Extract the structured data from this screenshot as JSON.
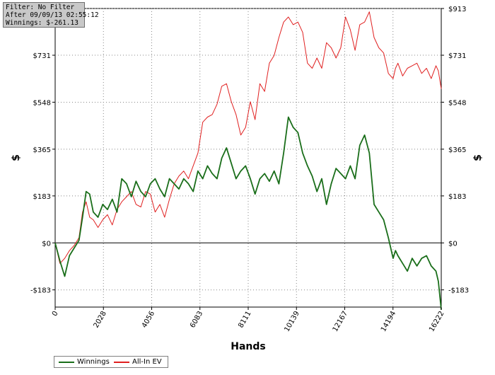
{
  "info": {
    "filter": "Filter: No Filter",
    "after": "After 09/09/13 02:55:12",
    "winnings": "Winnings: $-261.13"
  },
  "colors": {
    "winnings": "#1a6e1a",
    "allin_ev": "#e02020",
    "grid": "#888888"
  },
  "chart_data": {
    "type": "line",
    "xlabel": "Hands",
    "ylabel": "$",
    "ylabel_right": "$",
    "xlim": [
      0,
      16222
    ],
    "ylim": [
      -250,
      913
    ],
    "x_ticks": [
      0,
      2028,
      4056,
      6083,
      8111,
      10139,
      12167,
      14194,
      16222
    ],
    "x_tick_labels": [
      "0",
      "2028",
      "4056",
      "6083",
      "8111",
      "10139",
      "12167",
      "14194",
      "16222"
    ],
    "y_ticks": [
      -183,
      0,
      183,
      365,
      548,
      731,
      913
    ],
    "y_tick_labels": [
      "-$183",
      "$0",
      "$183",
      "$365",
      "$548",
      "$731",
      "$913"
    ],
    "grid": true,
    "legend": "bottom-left",
    "series": [
      {
        "name": "Winnings",
        "color": "#1a6e1a",
        "x": [
          0,
          200,
          400,
          600,
          800,
          1000,
          1150,
          1300,
          1450,
          1600,
          1800,
          2000,
          2200,
          2400,
          2600,
          2800,
          3000,
          3200,
          3400,
          3600,
          3800,
          4000,
          4200,
          4400,
          4600,
          4800,
          5000,
          5200,
          5400,
          5600,
          5800,
          6000,
          6200,
          6400,
          6600,
          6800,
          7000,
          7200,
          7400,
          7600,
          7800,
          8000,
          8200,
          8400,
          8600,
          8800,
          9000,
          9200,
          9400,
          9600,
          9800,
          10000,
          10200,
          10400,
          10600,
          10800,
          11000,
          11200,
          11400,
          11600,
          11800,
          12000,
          12200,
          12400,
          12600,
          12800,
          13000,
          13200,
          13400,
          13600,
          13800,
          14000,
          14200,
          14300,
          14400,
          14600,
          14800,
          15000,
          15200,
          15400,
          15600,
          15800,
          16000,
          16100,
          16222
        ],
        "y": [
          0,
          -70,
          -130,
          -50,
          -20,
          10,
          100,
          200,
          190,
          120,
          100,
          150,
          130,
          170,
          120,
          250,
          230,
          180,
          240,
          200,
          180,
          230,
          250,
          210,
          180,
          250,
          230,
          210,
          250,
          230,
          200,
          280,
          250,
          300,
          270,
          250,
          330,
          370,
          310,
          250,
          280,
          300,
          250,
          190,
          250,
          270,
          240,
          280,
          230,
          350,
          490,
          450,
          430,
          350,
          300,
          260,
          200,
          250,
          150,
          230,
          290,
          270,
          250,
          300,
          250,
          380,
          420,
          350,
          150,
          120,
          90,
          20,
          -60,
          -30,
          -50,
          -80,
          -110,
          -60,
          -90,
          -60,
          -50,
          -90,
          -110,
          -150,
          -260
        ]
      },
      {
        "name": "All-In EV",
        "color": "#e02020",
        "x": [
          0,
          200,
          400,
          600,
          800,
          1000,
          1150,
          1300,
          1450,
          1600,
          1800,
          2000,
          2200,
          2400,
          2600,
          2800,
          3000,
          3200,
          3400,
          3600,
          3800,
          4000,
          4200,
          4400,
          4600,
          4800,
          5000,
          5200,
          5400,
          5600,
          5800,
          6000,
          6200,
          6400,
          6600,
          6800,
          7000,
          7200,
          7400,
          7600,
          7800,
          8000,
          8200,
          8400,
          8600,
          8800,
          9000,
          9200,
          9400,
          9600,
          9800,
          10000,
          10200,
          10400,
          10600,
          10800,
          11000,
          11200,
          11400,
          11600,
          11800,
          12000,
          12200,
          12400,
          12600,
          12800,
          13000,
          13200,
          13400,
          13600,
          13800,
          14000,
          14200,
          14300,
          14400,
          14600,
          14800,
          15000,
          15200,
          15400,
          15600,
          15800,
          16000,
          16100,
          16222
        ],
        "y": [
          0,
          -80,
          -60,
          -30,
          -10,
          20,
          120,
          160,
          100,
          90,
          60,
          90,
          110,
          70,
          130,
          160,
          180,
          200,
          150,
          140,
          200,
          190,
          120,
          150,
          100,
          170,
          230,
          260,
          280,
          250,
          300,
          350,
          470,
          490,
          500,
          540,
          610,
          620,
          550,
          500,
          420,
          450,
          550,
          480,
          620,
          590,
          700,
          730,
          800,
          860,
          880,
          850,
          860,
          820,
          700,
          680,
          720,
          680,
          780,
          760,
          720,
          760,
          880,
          830,
          750,
          850,
          860,
          900,
          800,
          760,
          740,
          660,
          640,
          680,
          700,
          650,
          680,
          690,
          700,
          660,
          680,
          640,
          690,
          670,
          600
        ]
      }
    ]
  }
}
